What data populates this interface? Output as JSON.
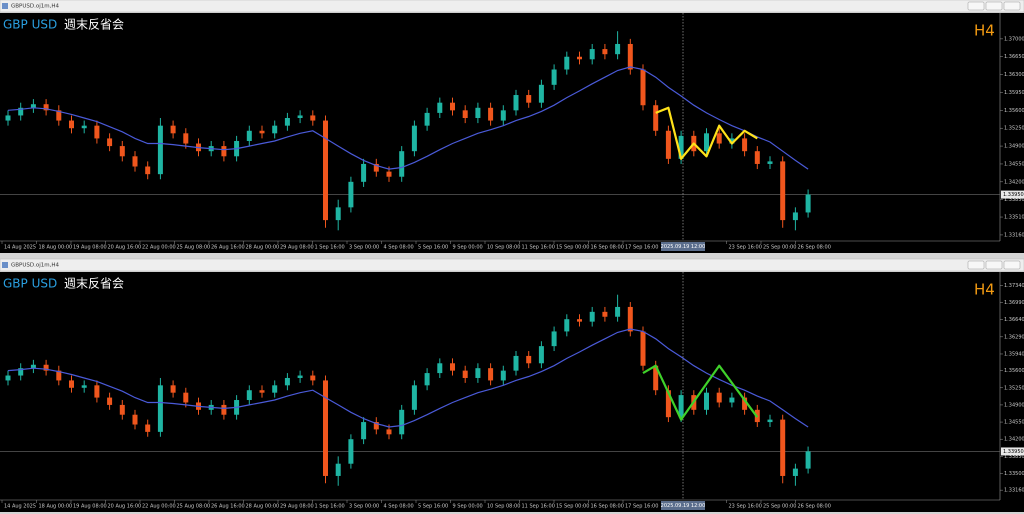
{
  "market": {
    "up_color": "#1fb5a3",
    "down_color": "#f0561d",
    "ma_color": "#4a5ad8",
    "candles": [
      [
        1.354,
        1.356,
        1.353,
        1.355
      ],
      [
        1.355,
        1.3575,
        1.354,
        1.3565
      ],
      [
        1.3565,
        1.3582,
        1.3555,
        1.3572
      ],
      [
        1.3572,
        1.3582,
        1.355,
        1.356
      ],
      [
        1.356,
        1.357,
        1.353,
        1.354
      ],
      [
        1.354,
        1.355,
        1.3515,
        1.3525
      ],
      [
        1.3525,
        1.354,
        1.3515,
        1.353
      ],
      [
        1.353,
        1.354,
        1.3495,
        1.3505
      ],
      [
        1.3505,
        1.3515,
        1.348,
        1.349
      ],
      [
        1.349,
        1.35,
        1.346,
        1.347
      ],
      [
        1.347,
        1.348,
        1.344,
        1.345
      ],
      [
        1.345,
        1.346,
        1.3425,
        1.3435
      ],
      [
        1.3435,
        1.3545,
        1.3425,
        1.353
      ],
      [
        1.353,
        1.354,
        1.3505,
        1.3515
      ],
      [
        1.3515,
        1.3525,
        1.3485,
        1.3495
      ],
      [
        1.3495,
        1.3505,
        1.347,
        1.348
      ],
      [
        1.348,
        1.35,
        1.347,
        1.349
      ],
      [
        1.349,
        1.35,
        1.346,
        1.347
      ],
      [
        1.347,
        1.351,
        1.346,
        1.35
      ],
      [
        1.35,
        1.353,
        1.349,
        1.352
      ],
      [
        1.352,
        1.353,
        1.3505,
        1.3515
      ],
      [
        1.3515,
        1.354,
        1.3505,
        1.353
      ],
      [
        1.353,
        1.3555,
        1.352,
        1.3545
      ],
      [
        1.3545,
        1.356,
        1.3535,
        1.355
      ],
      [
        1.355,
        1.356,
        1.353,
        1.354
      ],
      [
        1.354,
        1.355,
        1.333,
        1.3345
      ],
      [
        1.3345,
        1.3385,
        1.3325,
        1.337
      ],
      [
        1.337,
        1.343,
        1.336,
        1.342
      ],
      [
        1.342,
        1.3465,
        1.341,
        1.3455
      ],
      [
        1.3455,
        1.3465,
        1.343,
        1.344
      ],
      [
        1.344,
        1.345,
        1.342,
        1.343
      ],
      [
        1.343,
        1.349,
        1.342,
        1.348
      ],
      [
        1.348,
        1.354,
        1.347,
        1.353
      ],
      [
        1.353,
        1.3565,
        1.352,
        1.3555
      ],
      [
        1.3555,
        1.3585,
        1.3545,
        1.3575
      ],
      [
        1.3575,
        1.3585,
        1.355,
        1.356
      ],
      [
        1.356,
        1.357,
        1.3535,
        1.3545
      ],
      [
        1.3545,
        1.3575,
        1.3535,
        1.3565
      ],
      [
        1.3565,
        1.3575,
        1.353,
        1.354
      ],
      [
        1.354,
        1.357,
        1.353,
        1.356
      ],
      [
        1.356,
        1.36,
        1.355,
        1.359
      ],
      [
        1.359,
        1.36,
        1.3565,
        1.3575
      ],
      [
        1.3575,
        1.362,
        1.3565,
        1.361
      ],
      [
        1.361,
        1.365,
        1.36,
        1.364
      ],
      [
        1.364,
        1.3675,
        1.363,
        1.3665
      ],
      [
        1.3665,
        1.3675,
        1.365,
        1.366
      ],
      [
        1.366,
        1.369,
        1.365,
        1.368
      ],
      [
        1.368,
        1.369,
        1.366,
        1.367
      ],
      [
        1.367,
        1.3715,
        1.366,
        1.369
      ],
      [
        1.369,
        1.37,
        1.363,
        1.364
      ],
      [
        1.364,
        1.365,
        1.356,
        1.357
      ],
      [
        1.357,
        1.358,
        1.351,
        1.352
      ],
      [
        1.352,
        1.353,
        1.3455,
        1.3465
      ],
      [
        1.3465,
        1.352,
        1.3455,
        1.351
      ],
      [
        1.351,
        1.352,
        1.347,
        1.348
      ],
      [
        1.348,
        1.3525,
        1.347,
        1.3515
      ],
      [
        1.3515,
        1.3525,
        1.3485,
        1.3495
      ],
      [
        1.3495,
        1.3515,
        1.3485,
        1.3505
      ],
      [
        1.3505,
        1.3515,
        1.347,
        1.348
      ],
      [
        1.348,
        1.349,
        1.3445,
        1.3455
      ],
      [
        1.3455,
        1.347,
        1.3445,
        1.346
      ],
      [
        1.346,
        1.347,
        1.333,
        1.3345
      ],
      [
        1.3345,
        1.337,
        1.3325,
        1.336
      ],
      [
        1.336,
        1.3405,
        1.335,
        1.3395
      ]
    ],
    "ma": [
      1.356,
      1.3562,
      1.3565,
      1.3563,
      1.3558,
      1.3552,
      1.3545,
      1.3538,
      1.3528,
      1.3518,
      1.3505,
      1.3495,
      1.3495,
      1.3493,
      1.349,
      1.3487,
      1.3485,
      1.3483,
      1.3485,
      1.349,
      1.3495,
      1.35,
      1.3508,
      1.3515,
      1.352,
      1.3505,
      1.349,
      1.3475,
      1.3462,
      1.3452,
      1.3445,
      1.3448,
      1.3458,
      1.347,
      1.3483,
      1.3495,
      1.3505,
      1.3515,
      1.3522,
      1.353,
      1.354,
      1.3548,
      1.3558,
      1.357,
      1.3585,
      1.3598,
      1.3612,
      1.3625,
      1.3638,
      1.3645,
      1.364,
      1.3625,
      1.3605,
      1.3588,
      1.357,
      1.3555,
      1.3542,
      1.353,
      1.352,
      1.3508,
      1.3498,
      1.348,
      1.3462,
      1.3445
    ]
  },
  "windows": [
    {
      "title": "GBPUSD.oj1m,H4",
      "symbol": "GBP USD",
      "note": "週末反省会",
      "timeframe": "H4",
      "ylim": [
        1.3308,
        1.3735
      ],
      "yticks": [
        {
          "value": 1.37,
          "label": "1.37000"
        },
        {
          "value": 1.3665,
          "label": "1.36650"
        },
        {
          "value": 1.363,
          "label": "1.36300"
        },
        {
          "value": 1.3595,
          "label": "1.35950"
        },
        {
          "value": 1.356,
          "label": "1.35600"
        },
        {
          "value": 1.3525,
          "label": "1.35250"
        },
        {
          "value": 1.349,
          "label": "1.34900"
        },
        {
          "value": 1.3455,
          "label": "1.34550"
        },
        {
          "value": 1.342,
          "label": "1.34200"
        },
        {
          "value": 1.3385,
          "label": "1.33850"
        },
        {
          "value": 1.3351,
          "label": "1.33510"
        },
        {
          "value": 1.3316,
          "label": "1.33160"
        }
      ],
      "price_label": {
        "value": 1.3395,
        "label": "1.33950"
      },
      "cursor_time": "2025.09.19 12:00",
      "time_labels": [
        "14 Aug 2025",
        "18 Aug 00:00",
        "19 Aug 08:00",
        "20 Aug 16:00",
        "22 Aug 00:00",
        "25 Aug 08:00",
        "26 Aug 16:00",
        "28 Aug 00:00",
        "29 Aug 08:00",
        "1 Sep 16:00",
        "3 Sep 00:00",
        "4 Sep 08:00",
        "5 Sep 16:00",
        "9 Sep 00:00",
        "10 Sep 08:00",
        "11 Sep 16:00",
        "15 Sep 00:00",
        "16 Sep 08:00",
        "17 Sep 16:00",
        "23 Sep 16:00",
        "25 Sep 00:00",
        "26 Sep 08:00"
      ],
      "zigzag": {
        "color": "#ffe21a",
        "x": [
          51,
          52,
          53,
          54,
          55,
          56,
          57,
          58,
          59
        ],
        "values": [
          1.3555,
          1.3565,
          1.3465,
          1.3495,
          1.347,
          1.353,
          1.3495,
          1.352,
          1.3505
        ]
      }
    },
    {
      "title": "GBPUSD.oj1m,H4",
      "symbol": "GBP USD",
      "note": "週末反省会",
      "timeframe": "H4",
      "ylim": [
        1.33,
        1.3745
      ],
      "yticks": [
        {
          "value": 1.3734,
          "label": "1.37340"
        },
        {
          "value": 1.3699,
          "label": "1.36990"
        },
        {
          "value": 1.3664,
          "label": "1.36640"
        },
        {
          "value": 1.3629,
          "label": "1.36290"
        },
        {
          "value": 1.3594,
          "label": "1.35940"
        },
        {
          "value": 1.356,
          "label": "1.35600"
        },
        {
          "value": 1.3525,
          "label": "1.35250"
        },
        {
          "value": 1.349,
          "label": "1.34900"
        },
        {
          "value": 1.3455,
          "label": "1.34550"
        },
        {
          "value": 1.342,
          "label": "1.34200"
        },
        {
          "value": 1.3385,
          "label": "1.33850"
        },
        {
          "value": 1.335,
          "label": "1.33500"
        },
        {
          "value": 1.3316,
          "label": "1.33160"
        }
      ],
      "price_label": {
        "value": 1.3395,
        "label": "1.33950"
      },
      "cursor_time": "2025.09.19 12:00",
      "time_labels": [
        "14 Aug 2025",
        "18 Aug 00:00",
        "19 Aug 08:00",
        "20 Aug 16:00",
        "22 Aug 00:00",
        "25 Aug 08:00",
        "26 Aug 16:00",
        "28 Aug 00:00",
        "29 Aug 08:00",
        "1 Sep 16:00",
        "3 Sep 00:00",
        "4 Sep 08:00",
        "5 Sep 16:00",
        "9 Sep 00:00",
        "10 Sep 08:00",
        "11 Sep 16:00",
        "15 Sep 00:00",
        "16 Sep 08:00",
        "17 Sep 16:00",
        "23 Sep 16:00",
        "25 Sep 00:00",
        "26 Sep 08:00"
      ],
      "zigzag": {
        "color": "#3fd12a",
        "x": [
          50,
          51,
          53,
          56,
          59
        ],
        "values": [
          1.3555,
          1.357,
          1.346,
          1.357,
          1.3465
        ]
      }
    }
  ]
}
